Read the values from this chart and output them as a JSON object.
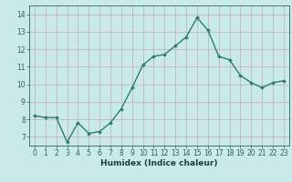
{
  "x": [
    0,
    1,
    2,
    3,
    4,
    5,
    6,
    7,
    8,
    9,
    10,
    11,
    12,
    13,
    14,
    15,
    16,
    17,
    18,
    19,
    20,
    21,
    22,
    23
  ],
  "y": [
    8.2,
    8.1,
    8.1,
    6.7,
    7.8,
    7.2,
    7.3,
    7.8,
    8.6,
    9.8,
    11.1,
    11.6,
    11.7,
    12.2,
    12.7,
    13.8,
    13.1,
    11.6,
    11.4,
    10.5,
    10.1,
    9.8,
    10.1,
    10.2
  ],
  "xlim": [
    -0.5,
    23.5
  ],
  "ylim": [
    6.5,
    14.5
  ],
  "yticks": [
    7,
    8,
    9,
    10,
    11,
    12,
    13,
    14
  ],
  "xticks": [
    0,
    1,
    2,
    3,
    4,
    5,
    6,
    7,
    8,
    9,
    10,
    11,
    12,
    13,
    14,
    15,
    16,
    17,
    18,
    19,
    20,
    21,
    22,
    23
  ],
  "xlabel": "Humidex (Indice chaleur)",
  "line_color": "#2d7d6e",
  "marker": "D",
  "marker_size": 2.0,
  "bg_color": "#c8eaea",
  "grid_color_major": "#c8a8a8",
  "grid_color_minor": "#ddc8c8",
  "tick_label_color": "#2d6060",
  "label_color": "#1a4040",
  "line_width": 1.0,
  "tick_fontsize": 5.5,
  "xlabel_fontsize": 6.5
}
